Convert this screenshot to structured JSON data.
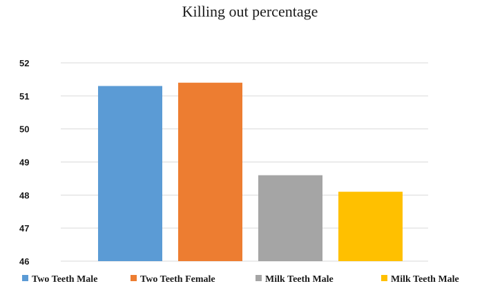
{
  "chart_data": {
    "type": "bar",
    "title": "Killing out percentage",
    "xlabel": "",
    "ylabel": "",
    "ylim": [
      46,
      52
    ],
    "yticks": [
      46,
      47,
      48,
      49,
      50,
      51,
      52
    ],
    "grid": true,
    "legend_position": "bottom",
    "categories": [
      "Two Teeth Male",
      "Two Teeth Female",
      "Milk Teeth Male",
      "Milk Teeth Male"
    ],
    "values": [
      51.3,
      51.4,
      48.6,
      48.1
    ],
    "colors": [
      "#5b9bd5",
      "#ed7d31",
      "#a5a5a5",
      "#ffc000"
    ]
  }
}
